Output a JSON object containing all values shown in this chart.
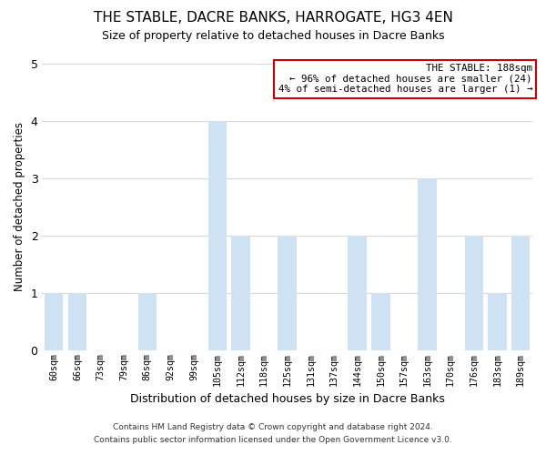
{
  "title": "THE STABLE, DACRE BANKS, HARROGATE, HG3 4EN",
  "subtitle": "Size of property relative to detached houses in Dacre Banks",
  "xlabel": "Distribution of detached houses by size in Dacre Banks",
  "ylabel": "Number of detached properties",
  "categories": [
    "60sqm",
    "66sqm",
    "73sqm",
    "79sqm",
    "86sqm",
    "92sqm",
    "99sqm",
    "105sqm",
    "112sqm",
    "118sqm",
    "125sqm",
    "131sqm",
    "137sqm",
    "144sqm",
    "150sqm",
    "157sqm",
    "163sqm",
    "170sqm",
    "176sqm",
    "183sqm",
    "189sqm"
  ],
  "values": [
    1,
    1,
    0,
    0,
    1,
    0,
    0,
    4,
    2,
    0,
    2,
    0,
    0,
    2,
    1,
    0,
    3,
    0,
    2,
    1,
    2
  ],
  "bar_color": "#cfe2f3",
  "highlight_bar_index": 20,
  "highlight_border_color": "#cc0000",
  "ylim": [
    0,
    5
  ],
  "yticks": [
    0,
    1,
    2,
    3,
    4,
    5
  ],
  "annotation_title": "THE STABLE: 188sqm",
  "annotation_line1": "← 96% of detached houses are smaller (24)",
  "annotation_line2": "4% of semi-detached houses are larger (1) →",
  "annotation_box_color": "#ffffff",
  "annotation_border_color": "#cc0000",
  "footer_line1": "Contains HM Land Registry data © Crown copyright and database right 2024.",
  "footer_line2": "Contains public sector information licensed under the Open Government Licence v3.0.",
  "grid_color": "#d8d8d8",
  "background_color": "#ffffff"
}
